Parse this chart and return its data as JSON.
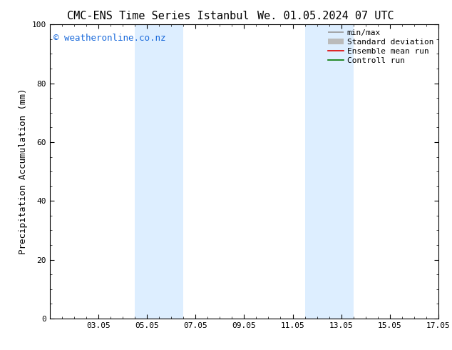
{
  "title_left": "CMC-ENS Time Series Istanbul",
  "title_right": "We. 01.05.2024 07 UTC",
  "ylabel": "Precipitation Accumulation (mm)",
  "xlabel": "",
  "ylim": [
    0,
    100
  ],
  "xlim": [
    0,
    16
  ],
  "xtick_labels": [
    "03.05",
    "05.05",
    "07.05",
    "09.05",
    "11.05",
    "13.05",
    "15.05",
    "17.05"
  ],
  "xtick_positions": [
    2,
    4,
    6,
    8,
    10,
    12,
    14,
    16
  ],
  "ytick_labels": [
    "0",
    "20",
    "40",
    "60",
    "80",
    "100"
  ],
  "ytick_positions": [
    0,
    20,
    40,
    60,
    80,
    100
  ],
  "shaded_bands": [
    {
      "x_start": 3.5,
      "x_end": 4.5,
      "color": "#ddeeff"
    },
    {
      "x_start": 4.5,
      "x_end": 5.5,
      "color": "#ddeeff"
    },
    {
      "x_start": 10.5,
      "x_end": 11.5,
      "color": "#ddeeff"
    },
    {
      "x_start": 11.5,
      "x_end": 12.5,
      "color": "#ddeeff"
    }
  ],
  "watermark_text": "© weatheronline.co.nz",
  "watermark_color": "#1a6adb",
  "watermark_fontsize": 9,
  "background_color": "#ffffff",
  "legend_items": [
    {
      "label": "min/max",
      "color": "#999999"
    },
    {
      "label": "Standard deviation",
      "color": "#bbbbbb"
    },
    {
      "label": "Ensemble mean run",
      "color": "#dd0000"
    },
    {
      "label": "Controll run",
      "color": "#007700"
    }
  ],
  "title_fontsize": 11,
  "axis_fontsize": 9,
  "tick_fontsize": 8,
  "legend_fontsize": 8
}
